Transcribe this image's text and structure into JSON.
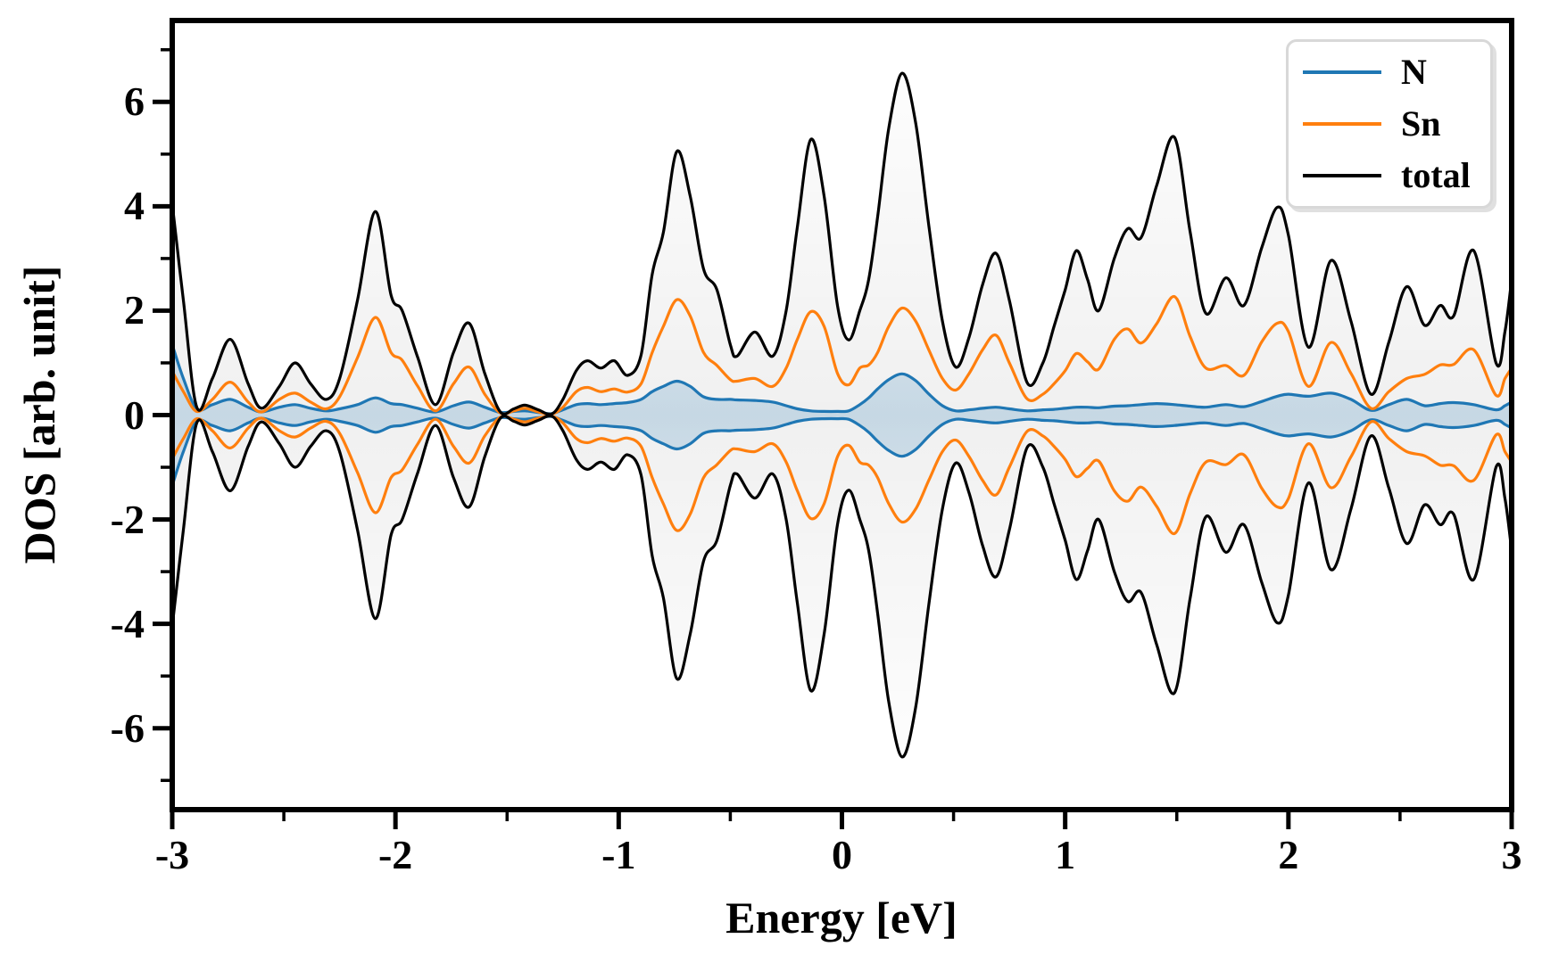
{
  "chart_data": {
    "type": "line",
    "title": "",
    "xlabel": "Energy [eV]",
    "ylabel": "DOS [arb. unit]",
    "xlim": [
      -3,
      3
    ],
    "ylim": [
      -7.56,
      7.56
    ],
    "grid": false,
    "legend_position": "upper right",
    "description": "Spin-polarized density of states: each series has a spin-up (positive) branch and a spin-down (negative) branch mirrored about zero.",
    "x_major_ticks": [
      -3,
      -2,
      -1,
      0,
      1,
      2,
      3
    ],
    "x_tick_labels": [
      "-3",
      "-2",
      "-1",
      "0",
      "1",
      "2",
      "3"
    ],
    "x_minor_ticks": [
      -2.5,
      -1.5,
      -0.5,
      0.5,
      1.5,
      2.5
    ],
    "y_major_ticks": [
      -6,
      -4,
      -2,
      0,
      2,
      4,
      6
    ],
    "y_tick_labels": [
      "-6",
      "-4",
      "-2",
      "0",
      "2",
      "4",
      "6"
    ],
    "y_minor_ticks": [
      -7,
      -5,
      -3,
      -1,
      1,
      3,
      5,
      7
    ],
    "x": [
      -3.0,
      -2.95,
      -2.89,
      -2.82,
      -2.74,
      -2.66,
      -2.6,
      -2.52,
      -2.45,
      -2.38,
      -2.31,
      -2.25,
      -2.17,
      -2.09,
      -2.02,
      -1.97,
      -1.9,
      -1.82,
      -1.74,
      -1.67,
      -1.6,
      -1.53,
      -1.47,
      -1.42,
      -1.36,
      -1.3,
      -1.25,
      -1.19,
      -1.14,
      -1.08,
      -1.02,
      -0.96,
      -0.9,
      -0.85,
      -0.8,
      -0.74,
      -0.68,
      -0.62,
      -0.56,
      -0.5,
      -0.47,
      -0.39,
      -0.31,
      -0.25,
      -0.2,
      -0.14,
      -0.08,
      -0.02,
      0.03,
      0.08,
      0.12,
      0.16,
      0.21,
      0.27,
      0.33,
      0.39,
      0.45,
      0.51,
      0.57,
      0.63,
      0.69,
      0.75,
      0.83,
      0.9,
      0.95,
      1.0,
      1.05,
      1.1,
      1.15,
      1.22,
      1.28,
      1.34,
      1.41,
      1.49,
      1.56,
      1.63,
      1.72,
      1.8,
      1.88,
      1.95,
      2.0,
      2.09,
      2.19,
      2.28,
      2.37,
      2.45,
      2.53,
      2.61,
      2.68,
      2.74,
      2.83,
      2.93,
      2.97,
      3.0
    ],
    "series": [
      {
        "name": "N",
        "color": "#1f77b4",
        "fill": true,
        "fill_opacity": 0.2,
        "values_down": "mirror",
        "values_up": [
          1.35,
          0.7,
          0.12,
          0.2,
          0.3,
          0.15,
          0.06,
          0.15,
          0.2,
          0.13,
          0.08,
          0.12,
          0.2,
          0.33,
          0.22,
          0.2,
          0.13,
          0.06,
          0.18,
          0.25,
          0.15,
          0.05,
          0.07,
          0.08,
          0.05,
          0.03,
          0.1,
          0.2,
          0.22,
          0.2,
          0.22,
          0.24,
          0.3,
          0.45,
          0.55,
          0.65,
          0.55,
          0.35,
          0.3,
          0.3,
          0.29,
          0.28,
          0.25,
          0.18,
          0.12,
          0.08,
          0.07,
          0.07,
          0.08,
          0.2,
          0.33,
          0.5,
          0.68,
          0.79,
          0.66,
          0.4,
          0.18,
          0.08,
          0.1,
          0.13,
          0.15,
          0.12,
          0.08,
          0.1,
          0.11,
          0.13,
          0.15,
          0.15,
          0.14,
          0.17,
          0.18,
          0.2,
          0.22,
          0.2,
          0.17,
          0.15,
          0.2,
          0.16,
          0.26,
          0.36,
          0.4,
          0.36,
          0.42,
          0.3,
          0.09,
          0.2,
          0.3,
          0.18,
          0.22,
          0.24,
          0.2,
          0.1,
          0.18,
          0.25
        ]
      },
      {
        "name": "Sn",
        "color": "#ff7f0e",
        "fill": false,
        "fill_opacity": 0,
        "values_down": "mirror",
        "values_up": [
          0.84,
          0.45,
          0.07,
          0.3,
          0.63,
          0.25,
          0.06,
          0.3,
          0.42,
          0.25,
          0.12,
          0.35,
          1.1,
          1.87,
          1.2,
          1.05,
          0.55,
          0.08,
          0.6,
          0.92,
          0.4,
          0.04,
          0.08,
          0.13,
          0.06,
          0.02,
          0.15,
          0.45,
          0.53,
          0.45,
          0.5,
          0.44,
          0.6,
          1.2,
          1.7,
          2.21,
          1.9,
          1.2,
          0.95,
          0.68,
          0.65,
          0.7,
          0.55,
          0.9,
          1.45,
          1.98,
          1.7,
          0.8,
          0.58,
          0.9,
          0.96,
          1.2,
          1.7,
          2.05,
          1.8,
          1.24,
          0.7,
          0.48,
          0.8,
          1.25,
          1.53,
          1.0,
          0.31,
          0.4,
          0.6,
          0.85,
          1.18,
          1.02,
          0.88,
          1.45,
          1.65,
          1.38,
          1.75,
          2.27,
          1.5,
          0.9,
          0.95,
          0.76,
          1.4,
          1.76,
          1.6,
          0.55,
          1.39,
          0.8,
          0.13,
          0.45,
          0.7,
          0.78,
          0.96,
          0.97,
          1.25,
          0.38,
          0.7,
          0.9
        ]
      },
      {
        "name": "total",
        "color": "#000000",
        "fill": true,
        "fill_opacity": 0.06,
        "values_down": "mirror",
        "values_up": [
          4.05,
          2.2,
          0.15,
          0.7,
          1.45,
          0.6,
          0.13,
          0.55,
          1.0,
          0.6,
          0.3,
          0.7,
          2.2,
          3.9,
          2.3,
          2.0,
          1.1,
          0.2,
          1.2,
          1.76,
          0.8,
          0.06,
          0.12,
          0.19,
          0.1,
          0.02,
          0.3,
          0.85,
          1.04,
          0.9,
          1.04,
          0.76,
          1.15,
          2.7,
          3.5,
          5.05,
          4.2,
          2.8,
          2.4,
          1.35,
          1.13,
          1.59,
          1.13,
          2.0,
          3.6,
          5.28,
          4.2,
          2.1,
          1.44,
          2.0,
          2.6,
          3.8,
          5.5,
          6.55,
          5.6,
          3.6,
          1.8,
          0.92,
          1.5,
          2.5,
          3.1,
          2.2,
          0.62,
          1.0,
          1.7,
          2.4,
          3.15,
          2.6,
          2.0,
          3.0,
          3.57,
          3.4,
          4.4,
          5.32,
          3.5,
          1.95,
          2.63,
          2.1,
          3.2,
          3.98,
          3.45,
          1.3,
          2.96,
          1.8,
          0.4,
          1.4,
          2.46,
          1.72,
          2.1,
          1.9,
          3.15,
          1.0,
          1.6,
          2.6
        ]
      }
    ],
    "legend_entries": [
      {
        "label": "N",
        "color": "#1f77b4"
      },
      {
        "label": "Sn",
        "color": "#ff7f0e"
      },
      {
        "label": "total",
        "color": "#000000"
      }
    ]
  }
}
